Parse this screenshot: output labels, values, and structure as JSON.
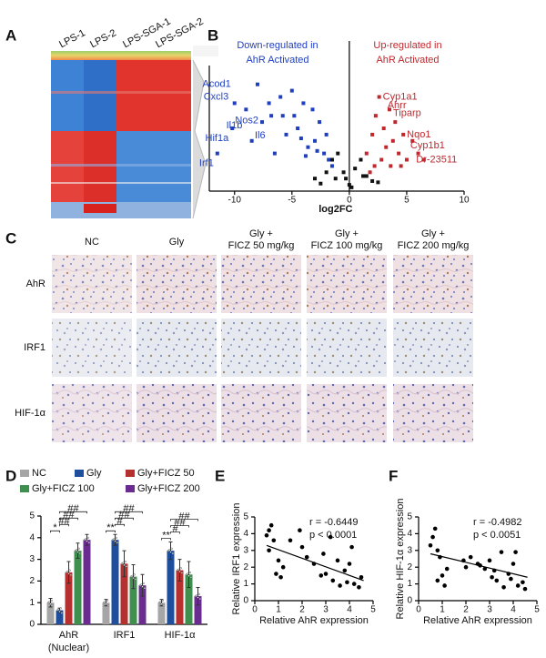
{
  "panel_labels": [
    "A",
    "B",
    "C",
    "D",
    "E",
    "F"
  ],
  "heatmap": {
    "columns": [
      "LPS-1",
      "LPS-2",
      "LPS-SGA-1",
      "LPS-SGA-2"
    ]
  },
  "volcano": {
    "type": "scatter",
    "title_down": [
      "Down-regulated in",
      "AhR Activated"
    ],
    "title_down_color": "#1f3fbf",
    "title_up": [
      "Up-regulated in",
      "AhR Activated"
    ],
    "title_up_color": "#c0282e",
    "x_label": "log2FC",
    "xlim": [
      -12.2,
      10
    ],
    "ylim": [
      0,
      10
    ],
    "xticks": [
      -10,
      -5,
      0,
      5,
      10
    ],
    "series": [
      {
        "color": "#1f3fbf",
        "x": [
          -11.5,
          -10,
          -10.2,
          -9,
          -8.5,
          -8,
          -7.6,
          -7,
          -6.8,
          -6,
          -5.5,
          -5,
          -4.8,
          -4.5,
          -4,
          -3.6,
          -3.2,
          -3,
          -2.6,
          -2.2,
          -2,
          -1.8,
          -1.5,
          -6.5,
          -5.8,
          -4.2,
          -3.8,
          -2.8
        ],
        "values": [
          3,
          7,
          5,
          6.5,
          4,
          8.5,
          5.5,
          7,
          6,
          7.5,
          4.5,
          8,
          6,
          5,
          7,
          3.5,
          6.5,
          4,
          5.5,
          3,
          4.5,
          2.5,
          2,
          3,
          6,
          4.2,
          2.8,
          3.2
        ]
      },
      {
        "color": "#c0282e",
        "x": [
          1.5,
          2,
          2.3,
          2.6,
          3,
          3.2,
          3.5,
          3.8,
          4,
          4.3,
          4.7,
          5,
          5.5,
          6,
          6.5,
          2.2,
          2.8,
          3.6,
          4.5,
          1.8
        ],
        "values": [
          3,
          4.5,
          6,
          7.5,
          5,
          3.5,
          6.5,
          4,
          5.5,
          3,
          4.5,
          2.5,
          4,
          3,
          2.5,
          2,
          2.5,
          2,
          2,
          1.5
        ]
      },
      {
        "color": "#111111",
        "x": [
          -3,
          -2,
          -1.5,
          -1,
          -0.5,
          0,
          0.5,
          1,
          1.5,
          2,
          -2.5,
          2.5,
          -1.2,
          1.2,
          0.2,
          -0.3
        ],
        "values": [
          1,
          1.5,
          2.5,
          3,
          1.5,
          0.5,
          1.8,
          2.5,
          1.2,
          0.8,
          0.6,
          0.7,
          1,
          1.2,
          0.3,
          1
        ]
      }
    ],
    "gene_labels": [
      {
        "label": "Acod1",
        "x": -10,
        "y": 8.5
      },
      {
        "label": "Cxcl3",
        "x": -10.2,
        "y": 7.5
      },
      {
        "label": "Il1b",
        "x": -9,
        "y": 5.2
      },
      {
        "label": "Hif1a",
        "x": -10.2,
        "y": 4.2
      },
      {
        "label": "Irf1",
        "x": -11.5,
        "y": 2.2
      },
      {
        "label": "Nos2",
        "x": -7.6,
        "y": 5.6
      },
      {
        "label": "Il6",
        "x": -7,
        "y": 4.4
      },
      {
        "label": "Cyp1a1",
        "x": 2.6,
        "y": 7.5
      },
      {
        "label": "Ahrr",
        "x": 3,
        "y": 6.8
      },
      {
        "label": "Tiparp",
        "x": 3.5,
        "y": 6.2
      },
      {
        "label": "Nqo1",
        "x": 4.7,
        "y": 4.5
      },
      {
        "label": "Cyp1b1",
        "x": 5,
        "y": 3.6
      },
      {
        "label": "Dr-23511",
        "x": 5.5,
        "y": 2.5
      }
    ]
  },
  "ihc": {
    "columns": [
      [
        "NC"
      ],
      [
        "Gly"
      ],
      [
        "Gly +",
        "FICZ 50 mg/kg"
      ],
      [
        "Gly +",
        "FICZ 100 mg/kg"
      ],
      [
        "Gly +",
        "FICZ 200 mg/kg"
      ]
    ],
    "rows": [
      "AhR",
      "IRF1",
      "HIF-1α"
    ]
  },
  "bars": {
    "type": "bar",
    "categories": [
      [
        "AhR",
        "(Nuclear)"
      ],
      [
        "IRF1"
      ],
      [
        "HIF-1α"
      ]
    ],
    "ylim": [
      0,
      5
    ],
    "yticks": [
      0,
      1,
      2,
      3,
      4,
      5
    ],
    "series": [
      {
        "name": "NC",
        "color": "#a6a6a6",
        "values": [
          1.0,
          1.0,
          1.0
        ],
        "errors": [
          0.2,
          0.15,
          0.15
        ]
      },
      {
        "name": "Gly",
        "color": "#1f4e9c",
        "values": [
          0.65,
          3.9,
          3.4
        ],
        "errors": [
          0.1,
          0.25,
          0.4
        ]
      },
      {
        "name": "Gly+FICZ 50",
        "color": "#b5302f",
        "values": [
          2.4,
          2.8,
          2.5
        ],
        "errors": [
          0.5,
          0.6,
          0.5
        ]
      },
      {
        "name": "Gly+FICZ 100",
        "color": "#3f8f4f",
        "values": [
          3.4,
          2.2,
          2.3
        ],
        "errors": [
          0.35,
          0.55,
          0.6
        ]
      },
      {
        "name": "Gly+FICZ 200",
        "color": "#6a2c8f",
        "values": [
          3.9,
          1.8,
          1.3
        ],
        "errors": [
          0.25,
          0.5,
          0.4
        ]
      }
    ],
    "significance": [
      {
        "category": 0,
        "groups": [
          0,
          1
        ],
        "label": "*"
      },
      {
        "category": 0,
        "groups": [
          1,
          2
        ],
        "label": "##"
      },
      {
        "category": 0,
        "groups": [
          1,
          3
        ],
        "label": "##"
      },
      {
        "category": 0,
        "groups": [
          1,
          4
        ],
        "label": "##"
      },
      {
        "category": 1,
        "groups": [
          0,
          1
        ],
        "label": "**"
      },
      {
        "category": 1,
        "groups": [
          1,
          2
        ],
        "label": "#"
      },
      {
        "category": 1,
        "groups": [
          1,
          3
        ],
        "label": "##"
      },
      {
        "category": 1,
        "groups": [
          1,
          4
        ],
        "label": "##"
      },
      {
        "category": 2,
        "groups": [
          0,
          1
        ],
        "label": "**"
      },
      {
        "category": 2,
        "groups": [
          1,
          2
        ],
        "label": "#"
      },
      {
        "category": 2,
        "groups": [
          1,
          3
        ],
        "label": "##"
      },
      {
        "category": 2,
        "groups": [
          1,
          4
        ],
        "label": "##"
      }
    ]
  },
  "correlations": [
    {
      "type": "scatter",
      "r_text": "r = -0.6449",
      "p_text": "p < 0.0001",
      "x_label": "Relative AhR expression",
      "y_label": "Relative IRF1 expression",
      "xlim": [
        0,
        5
      ],
      "ylim": [
        0,
        5
      ],
      "xticks": [
        0,
        1,
        2,
        3,
        4,
        5
      ],
      "yticks": [
        0,
        1,
        2,
        3,
        4,
        5
      ],
      "x": [
        0.5,
        0.6,
        0.7,
        0.8,
        0.6,
        1.0,
        0.9,
        1.2,
        1.1,
        1.9,
        2.0,
        2.2,
        2.5,
        2.8,
        3.0,
        3.2,
        3.3,
        3.5,
        3.6,
        3.8,
        3.9,
        4.0,
        4.1,
        4.2,
        4.4,
        4.5,
        1.5,
        2.9
      ],
      "values": [
        3.9,
        4.2,
        4.5,
        3.6,
        3.0,
        2.4,
        1.6,
        2.0,
        1.4,
        4.2,
        3.2,
        2.6,
        2.2,
        1.5,
        1.6,
        3.8,
        1.2,
        2.4,
        0.9,
        1.8,
        1.1,
        2.2,
        3.2,
        1.0,
        0.8,
        1.4,
        3.6,
        2.8
      ],
      "fit_line": {
        "x": [
          0.5,
          4.6
        ],
        "y": [
          3.3,
          1.2
        ]
      }
    },
    {
      "type": "scatter",
      "r_text": "r = -0.4982",
      "p_text": "p < 0.0051",
      "x_label": "Relative AhR expression",
      "y_label": "Relative HIF-1α expression",
      "xlim": [
        0,
        5
      ],
      "ylim": [
        0,
        5
      ],
      "xticks": [
        0,
        1,
        2,
        3,
        4,
        5
      ],
      "yticks": [
        0,
        1,
        2,
        3,
        4,
        5
      ],
      "x": [
        0.5,
        0.6,
        0.7,
        0.8,
        0.9,
        1.0,
        1.1,
        1.2,
        0.8,
        1.9,
        2.0,
        2.2,
        2.5,
        2.8,
        3.0,
        3.2,
        3.3,
        3.5,
        3.6,
        3.8,
        3.9,
        4.0,
        4.1,
        4.2,
        4.4,
        4.5,
        2.6,
        3.1
      ],
      "values": [
        3.3,
        3.8,
        4.3,
        3.0,
        2.6,
        1.5,
        0.9,
        1.9,
        1.2,
        2.4,
        2.0,
        2.6,
        2.2,
        1.9,
        2.4,
        1.8,
        1.2,
        2.9,
        0.8,
        1.6,
        1.3,
        2.2,
        2.9,
        0.9,
        1.1,
        0.7,
        2.1,
        1.4
      ],
      "fit_line": {
        "x": [
          0.5,
          4.6
        ],
        "y": [
          2.8,
          1.4
        ]
      }
    }
  ]
}
